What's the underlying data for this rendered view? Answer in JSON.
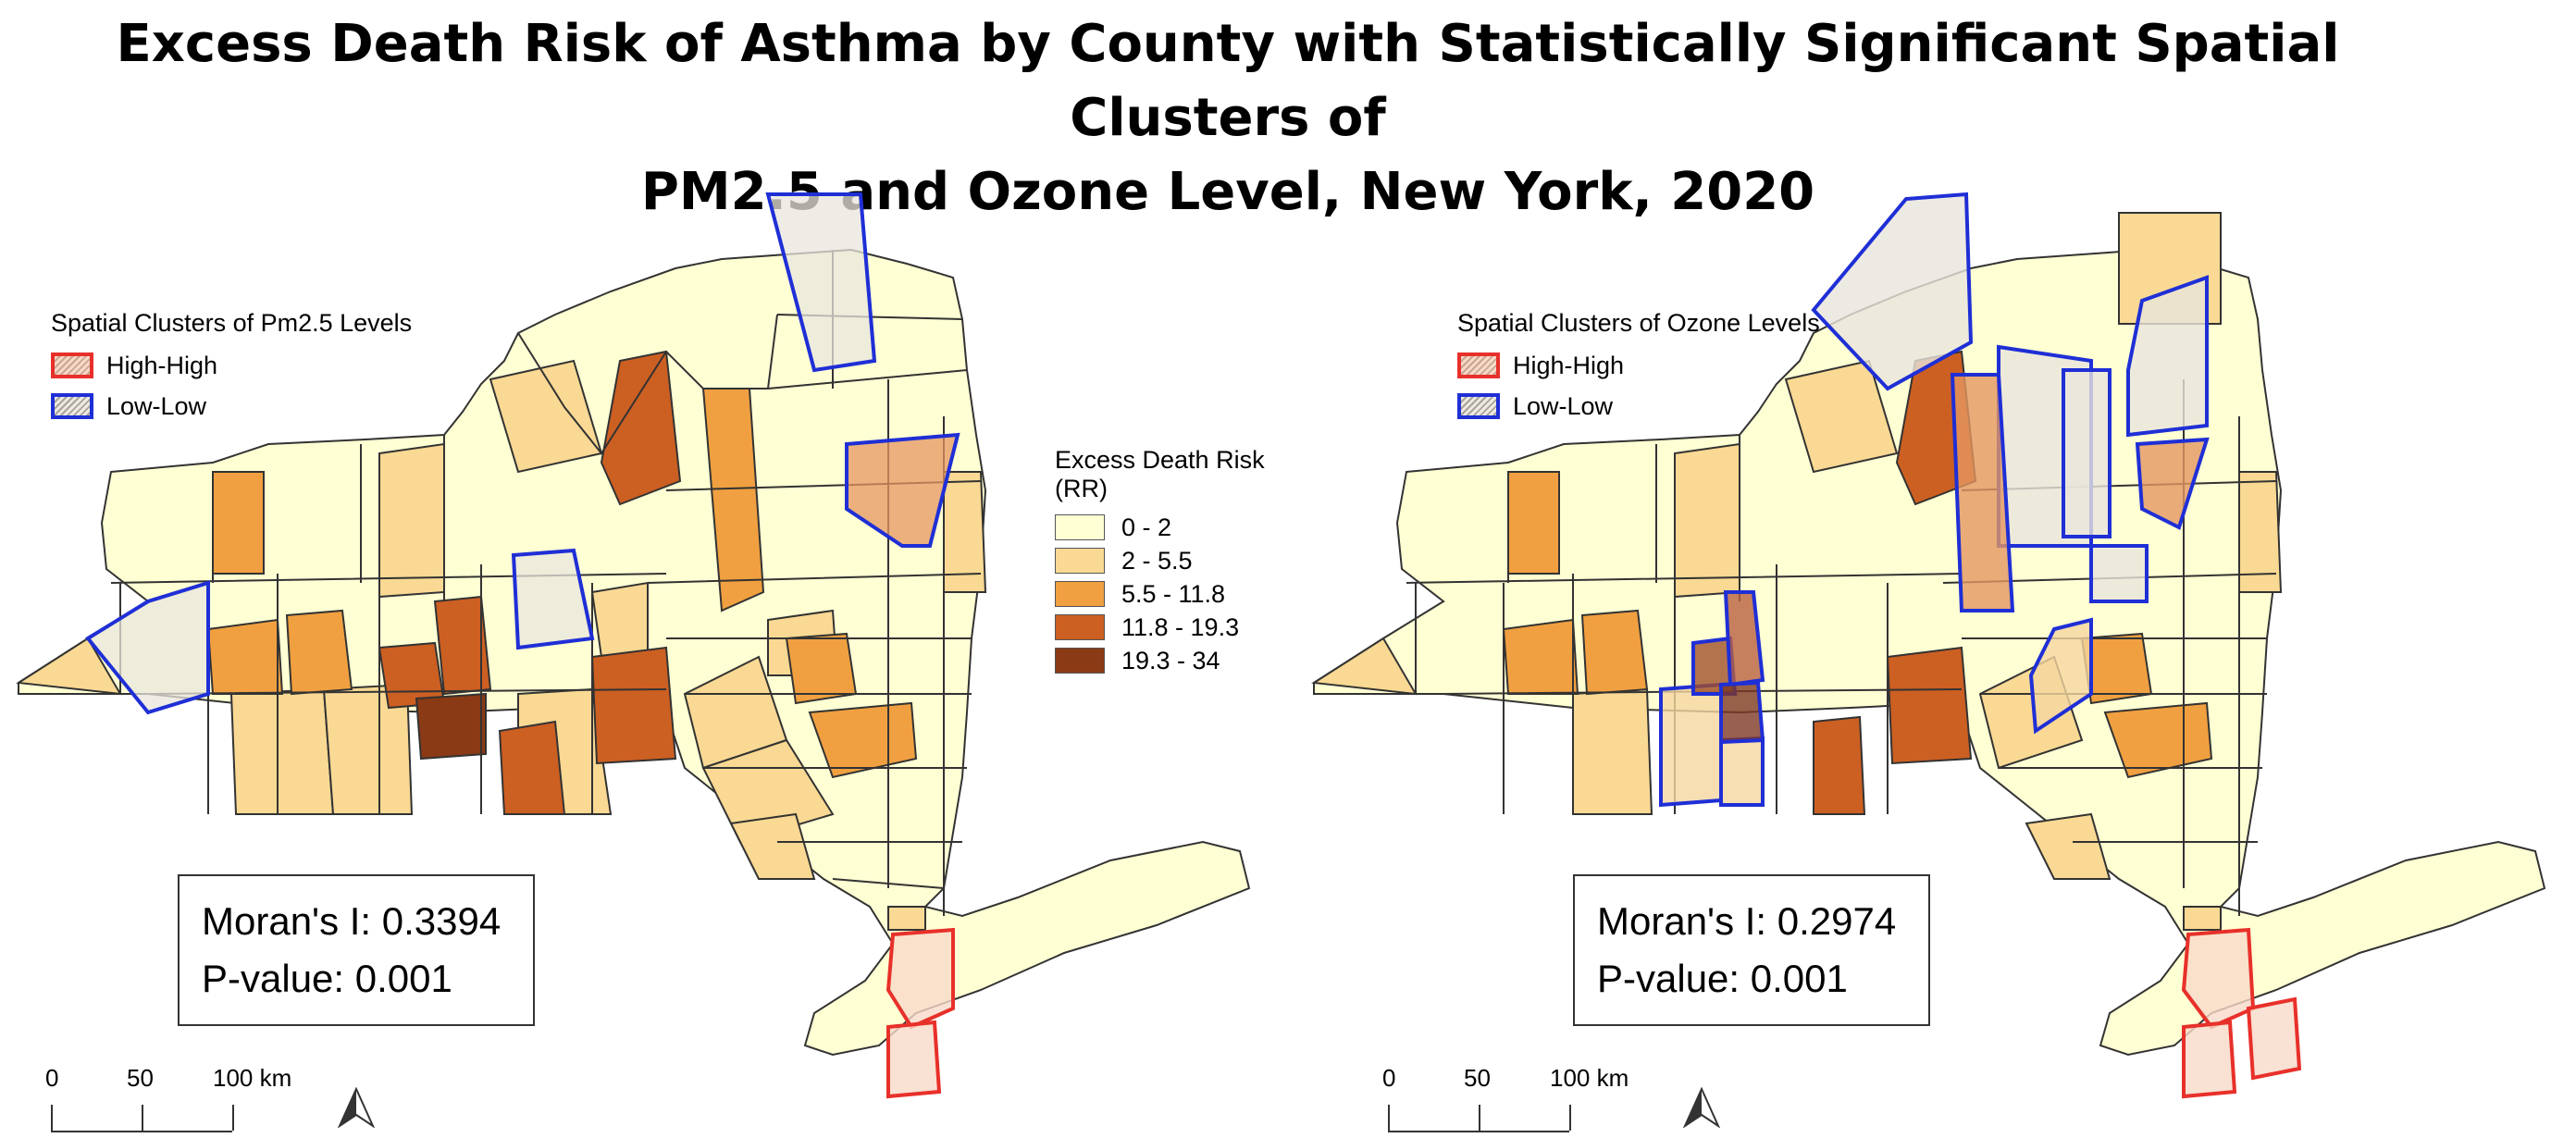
{
  "title": {
    "line1": "Excess Death Risk of Asthma by County  with Statistically Significant Spatial Clusters of",
    "line2": "PM2.5 and Ozone Level, New York, 2020"
  },
  "colors": {
    "rr_0_2": "#ffffd4",
    "rr_2_5": "#f9d993",
    "rr_5_11": "#f0a040",
    "rr_11_19": "#cc5f22",
    "rr_19_34": "#8a3a14",
    "high_high": "#e8302a",
    "low_low": "#1f2fd6"
  },
  "risk_legend": {
    "title": "Excess Death Risk (RR)",
    "classes": [
      "0 - 2",
      "2 - 5.5",
      "5.5 - 11.8",
      "11.8 - 19.3",
      "19.3 - 34"
    ]
  },
  "left_map": {
    "cluster_legend_title": "Spatial Clusters of Pm2.5 Levels",
    "high_high_label": "High-High",
    "low_low_label": "Low-Low",
    "morans_i": "Moran's I: 0.3394",
    "p_value": "P-value: 0.001",
    "scale_labels": [
      "0",
      "50",
      "100 km"
    ]
  },
  "right_map": {
    "cluster_legend_title": "Spatial Clusters of Ozone Levels",
    "high_high_label": "High-High",
    "low_low_label": "Low-Low",
    "morans_i": "Moran's I: 0.2974",
    "p_value": "P-value: 0.001",
    "scale_labels": [
      "0",
      "50",
      "100 km"
    ]
  }
}
